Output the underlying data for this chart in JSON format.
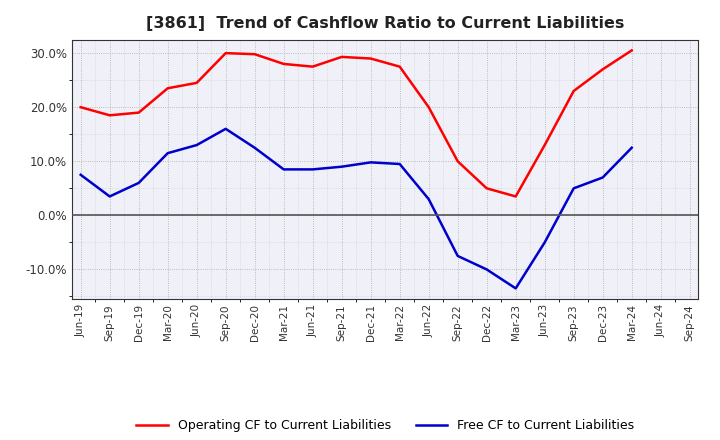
{
  "title": "[3861]  Trend of Cashflow Ratio to Current Liabilities",
  "x_labels": [
    "Jun-19",
    "Sep-19",
    "Dec-19",
    "Mar-20",
    "Jun-20",
    "Sep-20",
    "Dec-20",
    "Mar-21",
    "Jun-21",
    "Sep-21",
    "Dec-21",
    "Mar-22",
    "Jun-22",
    "Sep-22",
    "Dec-22",
    "Mar-23",
    "Jun-23",
    "Sep-23",
    "Dec-23",
    "Mar-24",
    "Jun-24",
    "Sep-24"
  ],
  "operating_cf": [
    20.0,
    18.5,
    19.0,
    23.5,
    24.5,
    30.0,
    29.8,
    28.0,
    27.5,
    29.3,
    29.0,
    27.5,
    20.0,
    10.0,
    5.0,
    3.5,
    13.0,
    23.0,
    27.0,
    30.5,
    null,
    null
  ],
  "free_cf": [
    7.5,
    3.5,
    6.0,
    11.5,
    13.0,
    16.0,
    12.5,
    8.5,
    8.5,
    9.0,
    9.8,
    9.5,
    3.0,
    -7.5,
    -10.0,
    -13.5,
    -5.0,
    5.0,
    7.0,
    12.5,
    null,
    null
  ],
  "operating_color": "#ff0000",
  "free_color": "#0000cc",
  "background_color": "#ffffff",
  "plot_bg_color": "#f0f0f8",
  "grid_color": "#999999",
  "zero_line_color": "#555555",
  "ylim": [
    -15.5,
    32.5
  ],
  "yticks": [
    -10.0,
    0.0,
    10.0,
    20.0,
    30.0
  ],
  "legend_labels": [
    "Operating CF to Current Liabilities",
    "Free CF to Current Liabilities"
  ],
  "title_color": "#222222"
}
